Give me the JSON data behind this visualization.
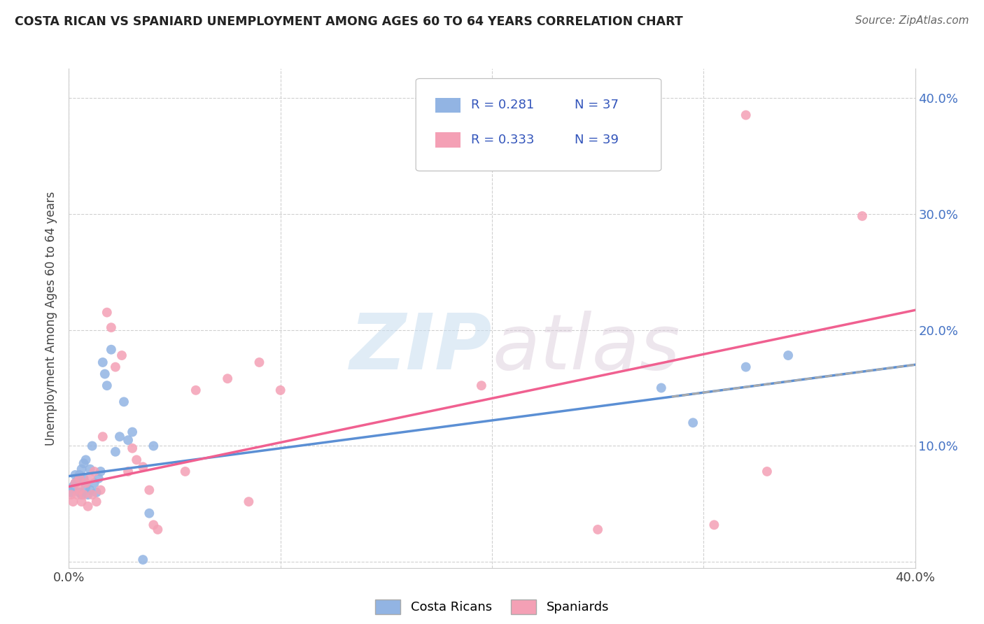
{
  "title": "COSTA RICAN VS SPANIARD UNEMPLOYMENT AMONG AGES 60 TO 64 YEARS CORRELATION CHART",
  "source": "Source: ZipAtlas.com",
  "ylabel": "Unemployment Among Ages 60 to 64 years",
  "xlim": [
    0.0,
    0.4
  ],
  "ylim": [
    -0.005,
    0.425
  ],
  "costa_rican_color": "#92b4e3",
  "spaniard_color": "#f4a0b5",
  "costa_rican_line_color": "#5b8fd4",
  "spaniard_line_color": "#f06090",
  "background_color": "#ffffff",
  "cr_R": 0.281,
  "cr_N": 37,
  "sp_R": 0.333,
  "sp_N": 39,
  "cr_line_intercept": 0.074,
  "cr_line_slope": 0.24,
  "sp_line_intercept": 0.065,
  "sp_line_slope": 0.38,
  "costa_ricans_x": [
    0.001,
    0.002,
    0.003,
    0.003,
    0.004,
    0.005,
    0.005,
    0.006,
    0.006,
    0.007,
    0.007,
    0.008,
    0.008,
    0.009,
    0.01,
    0.01,
    0.011,
    0.012,
    0.013,
    0.014,
    0.015,
    0.016,
    0.017,
    0.018,
    0.02,
    0.022,
    0.024,
    0.026,
    0.028,
    0.03,
    0.035,
    0.038,
    0.04,
    0.28,
    0.295,
    0.32,
    0.34
  ],
  "costa_ricans_y": [
    0.06,
    0.065,
    0.068,
    0.075,
    0.07,
    0.06,
    0.075,
    0.058,
    0.08,
    0.072,
    0.085,
    0.088,
    0.065,
    0.058,
    0.08,
    0.062,
    0.1,
    0.068,
    0.06,
    0.072,
    0.078,
    0.172,
    0.162,
    0.152,
    0.183,
    0.095,
    0.108,
    0.138,
    0.105,
    0.112,
    0.002,
    0.042,
    0.1,
    0.15,
    0.12,
    0.168,
    0.178
  ],
  "spaniards_x": [
    0.001,
    0.002,
    0.003,
    0.004,
    0.005,
    0.005,
    0.006,
    0.007,
    0.008,
    0.009,
    0.01,
    0.011,
    0.012,
    0.013,
    0.015,
    0.016,
    0.018,
    0.02,
    0.022,
    0.025,
    0.028,
    0.03,
    0.032,
    0.035,
    0.038,
    0.04,
    0.042,
    0.055,
    0.06,
    0.075,
    0.085,
    0.09,
    0.1,
    0.195,
    0.25,
    0.305,
    0.32,
    0.33,
    0.375
  ],
  "spaniards_y": [
    0.058,
    0.052,
    0.068,
    0.058,
    0.072,
    0.062,
    0.052,
    0.058,
    0.068,
    0.048,
    0.072,
    0.058,
    0.078,
    0.052,
    0.062,
    0.108,
    0.215,
    0.202,
    0.168,
    0.178,
    0.078,
    0.098,
    0.088,
    0.082,
    0.062,
    0.032,
    0.028,
    0.078,
    0.148,
    0.158,
    0.052,
    0.172,
    0.148,
    0.152,
    0.028,
    0.032,
    0.385,
    0.078,
    0.298
  ]
}
